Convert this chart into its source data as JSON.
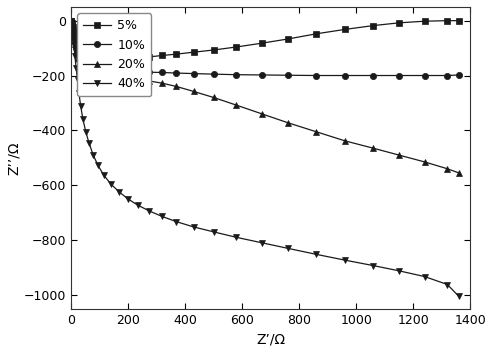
{
  "title": "",
  "xlabel": "Z’/Ω",
  "ylabel": "Z’’/Ω",
  "xlim": [
    0,
    1400
  ],
  "ylim": [
    -1050,
    50
  ],
  "yticks": [
    -1000,
    -800,
    -600,
    -400,
    -200,
    0
  ],
  "xticks": [
    0,
    200,
    400,
    600,
    800,
    1000,
    1200,
    1400
  ],
  "background_color": "#ffffff",
  "plot_bg_color": "#ffffff",
  "series": [
    {
      "label": "5%",
      "marker": "s",
      "color": "#1a1a1a",
      "x": [
        0,
        3,
        6,
        10,
        14,
        18,
        23,
        28,
        34,
        42,
        52,
        63,
        78,
        95,
        115,
        140,
        170,
        200,
        235,
        275,
        320,
        370,
        430,
        500,
        580,
        670,
        760,
        860,
        960,
        1060,
        1150,
        1240,
        1320,
        1360
      ],
      "y": [
        0,
        -10,
        -22,
        -38,
        -55,
        -72,
        -90,
        -108,
        -125,
        -143,
        -155,
        -162,
        -163,
        -161,
        -157,
        -152,
        -147,
        -142,
        -137,
        -132,
        -127,
        -122,
        -115,
        -107,
        -96,
        -82,
        -67,
        -48,
        -32,
        -18,
        -8,
        -2,
        0,
        0
      ]
    },
    {
      "label": "10%",
      "marker": "o",
      "color": "#1a1a1a",
      "x": [
        0,
        3,
        6,
        10,
        14,
        18,
        23,
        28,
        34,
        42,
        52,
        63,
        78,
        95,
        115,
        140,
        170,
        200,
        235,
        275,
        320,
        370,
        430,
        500,
        580,
        670,
        760,
        860,
        960,
        1060,
        1150,
        1240,
        1320,
        1360
      ],
      "y": [
        0,
        -13,
        -30,
        -52,
        -75,
        -98,
        -120,
        -142,
        -160,
        -175,
        -184,
        -188,
        -190,
        -190,
        -189,
        -188,
        -187,
        -187,
        -187,
        -188,
        -189,
        -191,
        -193,
        -195,
        -197,
        -198,
        -199,
        -200,
        -200,
        -200,
        -200,
        -200,
        -200,
        -198
      ]
    },
    {
      "label": "20%",
      "marker": "^",
      "color": "#1a1a1a",
      "x": [
        0,
        3,
        6,
        10,
        14,
        18,
        23,
        28,
        34,
        42,
        52,
        63,
        78,
        95,
        115,
        140,
        170,
        200,
        235,
        275,
        320,
        370,
        430,
        500,
        580,
        670,
        760,
        860,
        960,
        1060,
        1150,
        1240,
        1320,
        1360
      ],
      "y": [
        0,
        -14,
        -33,
        -58,
        -84,
        -110,
        -136,
        -162,
        -185,
        -204,
        -218,
        -225,
        -228,
        -226,
        -222,
        -218,
        -215,
        -214,
        -216,
        -220,
        -228,
        -240,
        -258,
        -280,
        -308,
        -340,
        -372,
        -405,
        -438,
        -465,
        -490,
        -515,
        -540,
        -555
      ]
    },
    {
      "label": "40%",
      "marker": "v",
      "color": "#1a1a1a",
      "x": [
        0,
        3,
        6,
        10,
        14,
        18,
        23,
        28,
        34,
        42,
        52,
        63,
        78,
        95,
        115,
        140,
        170,
        200,
        235,
        275,
        320,
        370,
        430,
        500,
        580,
        670,
        760,
        860,
        960,
        1060,
        1150,
        1240,
        1320,
        1360
      ],
      "y": [
        0,
        -20,
        -50,
        -88,
        -130,
        -172,
        -218,
        -265,
        -310,
        -360,
        -405,
        -445,
        -490,
        -528,
        -563,
        -596,
        -625,
        -650,
        -673,
        -694,
        -714,
        -733,
        -752,
        -770,
        -790,
        -810,
        -830,
        -852,
        -873,
        -893,
        -912,
        -933,
        -962,
        -1005
      ]
    }
  ]
}
